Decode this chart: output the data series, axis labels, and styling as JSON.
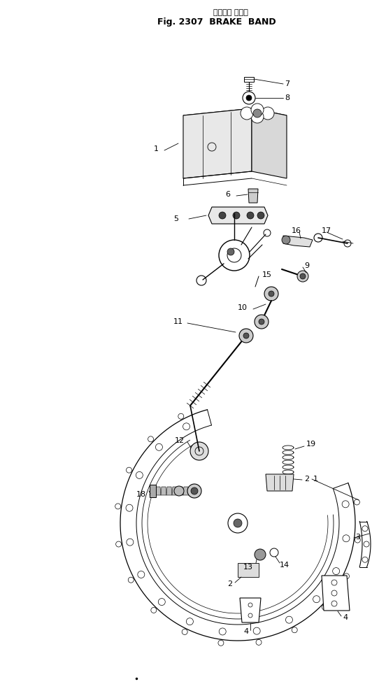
{
  "title_japanese": "ブレーキ バンド",
  "title_english": "Fig. 2307  BRAKE  BAND",
  "bg_color": "#ffffff",
  "fig_width": 5.52,
  "fig_height": 9.88,
  "dpi": 100
}
